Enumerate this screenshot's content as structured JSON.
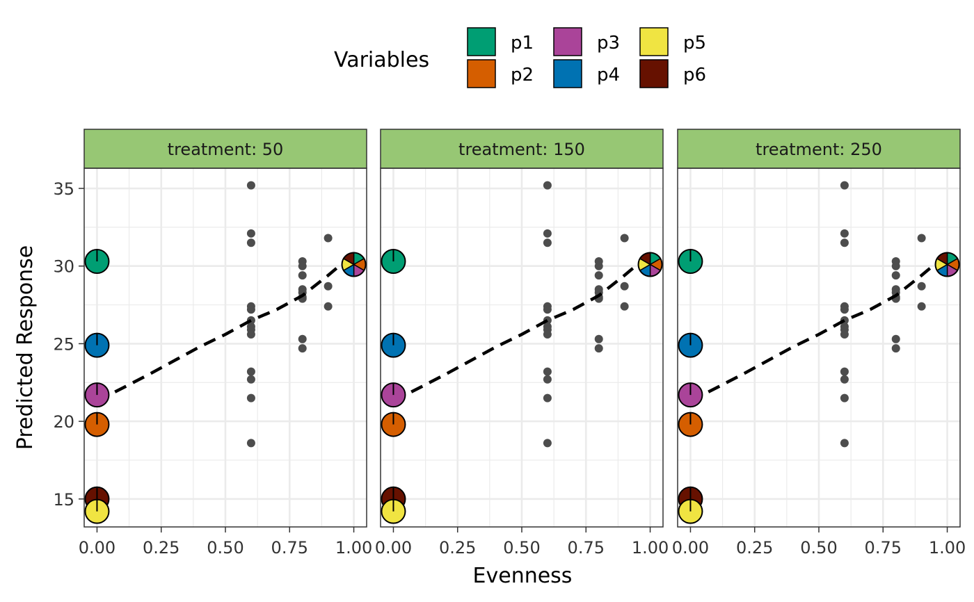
{
  "chart_data": {
    "type": "scatter",
    "xlabel": "Evenness",
    "ylabel": "Predicted Response",
    "xlim": [
      -0.05,
      1.05
    ],
    "ylim": [
      13.2,
      36.3
    ],
    "x_ticks": [
      0,
      0.25,
      0.5,
      0.75,
      1
    ],
    "x_tick_labels": [
      "0.00",
      "0.25",
      "0.50",
      "0.75",
      "1.00"
    ],
    "y_ticks": [
      15,
      20,
      25,
      30,
      35
    ],
    "y_tick_labels": [
      "15",
      "20",
      "25",
      "30",
      "35"
    ],
    "grid": true,
    "legend": {
      "title": "Variables",
      "position": "top",
      "items": [
        {
          "label": "p1",
          "color": "#009E73"
        },
        {
          "label": "p2",
          "color": "#D55E00"
        },
        {
          "label": "p3",
          "color": "#AA4499"
        },
        {
          "label": "p4",
          "color": "#0072B2"
        },
        {
          "label": "p5",
          "color": "#F0E442"
        },
        {
          "label": "p6",
          "color": "#661100"
        }
      ]
    },
    "facets": [
      {
        "label": "treatment: 50"
      },
      {
        "label": "treatment: 150"
      },
      {
        "label": "treatment: 250"
      }
    ],
    "strip_color": "#97C774",
    "points_color": "#4D4D4D",
    "points": [
      {
        "x": 0.6,
        "y": 35.2
      },
      {
        "x": 0.6,
        "y": 32.1
      },
      {
        "x": 0.6,
        "y": 31.5
      },
      {
        "x": 0.6,
        "y": 27.4
      },
      {
        "x": 0.6,
        "y": 27.2
      },
      {
        "x": 0.6,
        "y": 26.5
      },
      {
        "x": 0.6,
        "y": 26.1
      },
      {
        "x": 0.6,
        "y": 25.9
      },
      {
        "x": 0.6,
        "y": 25.6
      },
      {
        "x": 0.6,
        "y": 23.2
      },
      {
        "x": 0.6,
        "y": 22.7
      },
      {
        "x": 0.6,
        "y": 21.5
      },
      {
        "x": 0.6,
        "y": 18.6
      },
      {
        "x": 0.8,
        "y": 30.3
      },
      {
        "x": 0.8,
        "y": 30.0
      },
      {
        "x": 0.8,
        "y": 29.4
      },
      {
        "x": 0.8,
        "y": 28.5
      },
      {
        "x": 0.8,
        "y": 28.3
      },
      {
        "x": 0.8,
        "y": 28.0
      },
      {
        "x": 0.8,
        "y": 27.9
      },
      {
        "x": 0.8,
        "y": 25.3
      },
      {
        "x": 0.8,
        "y": 24.7
      },
      {
        "x": 0.9,
        "y": 31.8
      },
      {
        "x": 0.9,
        "y": 28.7
      },
      {
        "x": 0.9,
        "y": 27.4
      }
    ],
    "monoculture_pies": [
      {
        "label": "p1",
        "x": 0,
        "y": 30.3
      },
      {
        "label": "p4",
        "x": 0,
        "y": 24.9
      },
      {
        "label": "p3",
        "x": 0,
        "y": 21.7
      },
      {
        "label": "p2",
        "x": 0,
        "y": 19.8
      },
      {
        "label": "p6",
        "x": 0,
        "y": 15.0
      },
      {
        "label": "p5",
        "x": 0,
        "y": 14.2
      }
    ],
    "mixture_pie": {
      "x": 1,
      "y": 30.1,
      "labels": [
        "p1",
        "p2",
        "p3",
        "p4",
        "p5",
        "p6"
      ]
    },
    "trend_line": [
      {
        "x": 0.0,
        "y": 21.3
      },
      {
        "x": 0.2,
        "y": 23.0
      },
      {
        "x": 0.4,
        "y": 24.8
      },
      {
        "x": 0.5,
        "y": 25.6
      },
      {
        "x": 0.6,
        "y": 26.5
      },
      {
        "x": 0.7,
        "y": 27.2
      },
      {
        "x": 0.8,
        "y": 28.1
      },
      {
        "x": 0.9,
        "y": 29.4
      },
      {
        "x": 0.95,
        "y": 30.1
      }
    ]
  }
}
